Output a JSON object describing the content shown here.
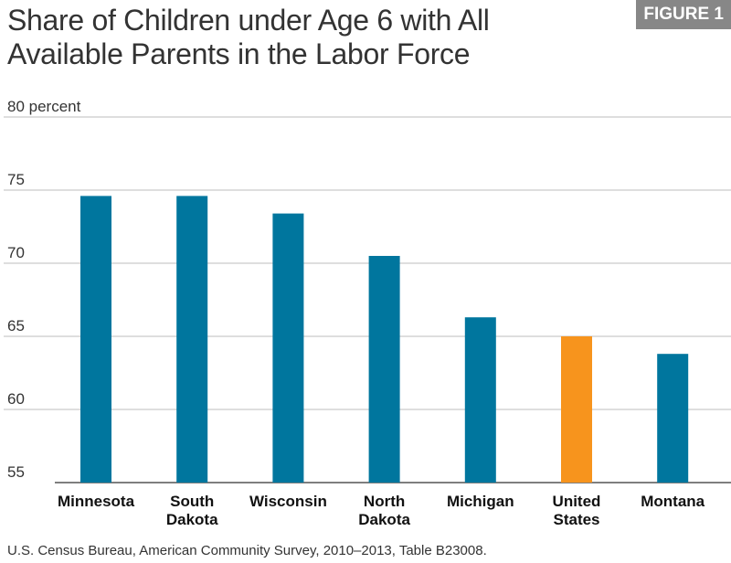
{
  "figure_label": "FIGURE 1",
  "title_lines": [
    "Share of Children under Age 6 with All",
    "Available Parents in the Labor Force"
  ],
  "source": "U.S. Census Bureau, American Community Survey, 2010–2013, Table B23008.",
  "colors": {
    "default_bar": "#00769e",
    "highlight_bar": "#f7941d",
    "grid": "#bdbdbd",
    "axis": "#555555"
  },
  "chart_data": {
    "type": "bar",
    "title": "Share of Children under Age 6 with All Available Parents in the Labor Force",
    "xlabel": "",
    "ylabel": "",
    "ylim": [
      55,
      80
    ],
    "yticks": [
      55,
      60,
      65,
      70,
      75,
      80
    ],
    "ytick_labels": [
      "55",
      "60",
      "65",
      "70",
      "75",
      "80 percent"
    ],
    "categories": [
      [
        "Minnesota"
      ],
      [
        "South",
        "Dakota"
      ],
      [
        "Wisconsin"
      ],
      [
        "North",
        "Dakota"
      ],
      [
        "Michigan"
      ],
      [
        "United",
        "States"
      ],
      [
        "Montana"
      ]
    ],
    "values": [
      74.6,
      74.6,
      73.4,
      70.5,
      66.3,
      65.0,
      63.8
    ],
    "highlight": [
      false,
      false,
      false,
      false,
      false,
      true,
      false
    ]
  }
}
